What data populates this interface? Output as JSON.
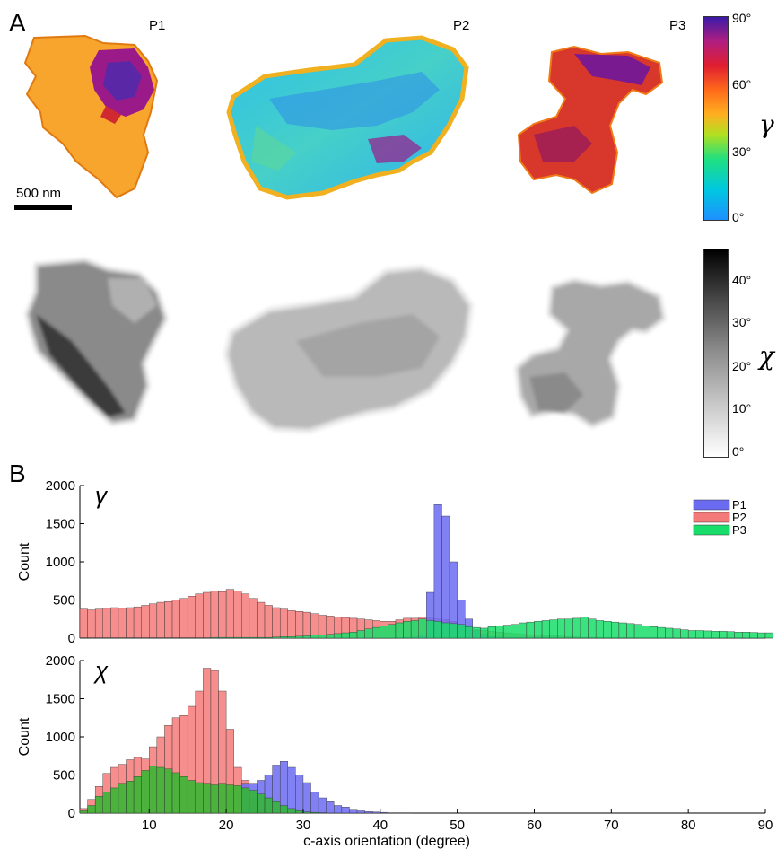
{
  "panel_a": {
    "letter": "A",
    "particle_labels": [
      "P1",
      "P2",
      "P3"
    ],
    "scale_bar": "500 nm",
    "gamma_colorbar": {
      "symbol": "γ",
      "ticks": [
        "90°",
        "60°",
        "30°",
        "0°"
      ]
    },
    "chi_colorbar": {
      "symbol": "χ",
      "ticks": [
        "40°",
        "30°",
        "20°",
        "10°",
        "0°"
      ]
    }
  },
  "panel_b": {
    "letter": "B"
  },
  "chart_data": [
    {
      "type": "bar",
      "title": "γ",
      "ylabel": "Count",
      "xlim": [
        1,
        90
      ],
      "ylim": [
        0,
        2000
      ],
      "yticks": [
        0,
        500,
        1000,
        1500,
        2000
      ],
      "xticks": [],
      "legend": {
        "position": "top-right",
        "entries": [
          "P1",
          "P2",
          "P3"
        ]
      },
      "colors": {
        "P1": "#6b6bf2",
        "P2": "#f47a7a",
        "P3": "#19dd6a"
      },
      "bin_width": 1,
      "x_start": 1,
      "series": [
        {
          "name": "P1",
          "values": [
            0,
            0,
            0,
            0,
            0,
            0,
            0,
            0,
            0,
            0,
            0,
            0,
            0,
            0,
            0,
            0,
            0,
            0,
            0,
            0,
            0,
            0,
            0,
            0,
            0,
            0,
            0,
            0,
            0,
            0,
            0,
            0,
            0,
            0,
            0,
            0,
            0,
            0,
            0,
            0,
            0,
            5,
            10,
            15,
            40,
            600,
            1750,
            1600,
            1000,
            500,
            250,
            100,
            50,
            20,
            15,
            10,
            10,
            10,
            10,
            10,
            10,
            10,
            10,
            10,
            10,
            10,
            10,
            10,
            10,
            10,
            10,
            10,
            10,
            10,
            10,
            5,
            5,
            0,
            0,
            0,
            0,
            0,
            0,
            0,
            0,
            0,
            0,
            0,
            0,
            0
          ]
        },
        {
          "name": "P2",
          "values": [
            380,
            370,
            380,
            390,
            400,
            390,
            400,
            410,
            430,
            450,
            470,
            480,
            500,
            520,
            550,
            580,
            600,
            620,
            610,
            640,
            620,
            580,
            520,
            470,
            430,
            400,
            380,
            360,
            350,
            340,
            320,
            300,
            290,
            280,
            270,
            260,
            250,
            240,
            230,
            220,
            220,
            240,
            260,
            260,
            280,
            260,
            250,
            240,
            220,
            150,
            120,
            110,
            100,
            90,
            80,
            70,
            60,
            50,
            45,
            40,
            35,
            30,
            25,
            20,
            15,
            10,
            10,
            10,
            5,
            5,
            5,
            5,
            5,
            5,
            5,
            5,
            5,
            5,
            5,
            5,
            5,
            5,
            5,
            5,
            5,
            5,
            5,
            5,
            5,
            5
          ]
        },
        {
          "name": "P3",
          "values": [
            5,
            5,
            5,
            5,
            5,
            5,
            5,
            5,
            5,
            5,
            5,
            5,
            5,
            5,
            5,
            5,
            5,
            10,
            10,
            10,
            10,
            10,
            10,
            10,
            10,
            15,
            20,
            20,
            25,
            30,
            40,
            45,
            50,
            60,
            70,
            80,
            100,
            120,
            140,
            160,
            180,
            200,
            220,
            230,
            250,
            230,
            220,
            200,
            190,
            180,
            150,
            140,
            130,
            150,
            160,
            170,
            180,
            200,
            210,
            220,
            230,
            240,
            250,
            250,
            260,
            280,
            250,
            230,
            220,
            210,
            200,
            190,
            180,
            160,
            150,
            140,
            130,
            120,
            110,
            100,
            100,
            95,
            90,
            90,
            85,
            80,
            80,
            75,
            70,
            70
          ]
        }
      ]
    },
    {
      "type": "bar",
      "title": "χ",
      "ylabel": "Count",
      "xlabel": "c-axis orientation (degree)",
      "xlim": [
        1,
        90
      ],
      "ylim": [
        0,
        2000
      ],
      "yticks": [
        0,
        500,
        1000,
        1500,
        2000
      ],
      "xticks": [
        10,
        20,
        30,
        40,
        50,
        60,
        70,
        80,
        90
      ],
      "colors": {
        "P1": "#6b6bf2",
        "P2": "#f47a7a",
        "P3": "#2fb82f"
      },
      "bin_width": 1,
      "x_start": 1,
      "series": [
        {
          "name": "P1",
          "values": [
            0,
            0,
            0,
            0,
            0,
            0,
            0,
            0,
            0,
            0,
            0,
            0,
            0,
            0,
            0,
            0,
            0,
            0,
            0,
            0,
            0,
            380,
            380,
            430,
            500,
            630,
            680,
            600,
            500,
            400,
            280,
            200,
            150,
            100,
            80,
            50,
            30,
            20,
            15,
            10,
            5,
            5,
            5,
            0,
            0,
            0,
            0,
            0,
            0,
            0,
            0,
            0,
            0,
            0,
            0,
            0,
            0,
            0,
            0,
            0,
            0,
            0,
            0,
            0,
            0,
            0,
            0,
            0,
            0,
            0,
            0,
            0,
            0,
            0,
            0,
            0,
            0,
            0,
            0,
            0,
            0,
            0,
            0,
            0,
            0,
            0,
            0,
            0,
            0,
            0
          ]
        },
        {
          "name": "P2",
          "values": [
            60,
            180,
            350,
            520,
            600,
            640,
            700,
            730,
            710,
            870,
            1000,
            1150,
            1250,
            1280,
            1400,
            1600,
            1900,
            1870,
            1600,
            1100,
            600,
            430,
            200,
            50,
            20,
            10,
            5,
            0,
            0,
            0,
            0,
            0,
            0,
            0,
            0,
            0,
            0,
            0,
            0,
            0,
            0,
            0,
            0,
            0,
            0,
            0,
            0,
            0,
            0,
            0,
            0,
            0,
            0,
            0,
            0,
            0,
            0,
            0,
            0,
            0,
            0,
            0,
            0,
            0,
            0,
            0,
            0,
            0,
            0,
            0,
            0,
            0,
            0,
            0,
            0,
            0,
            0,
            0,
            0,
            0,
            0,
            0,
            0,
            0,
            0,
            0,
            0,
            0,
            0,
            0
          ]
        },
        {
          "name": "P3",
          "values": [
            30,
            100,
            220,
            280,
            330,
            380,
            420,
            480,
            560,
            620,
            600,
            580,
            530,
            480,
            430,
            400,
            380,
            370,
            380,
            370,
            360,
            330,
            300,
            250,
            200,
            150,
            100,
            60,
            30,
            15,
            10,
            5,
            0,
            0,
            0,
            0,
            0,
            0,
            0,
            0,
            0,
            0,
            0,
            0,
            0,
            0,
            0,
            0,
            0,
            0,
            0,
            0,
            0,
            0,
            0,
            0,
            0,
            0,
            0,
            0,
            0,
            0,
            0,
            0,
            0,
            0,
            0,
            0,
            0,
            0,
            0,
            0,
            0,
            0,
            0,
            0,
            0,
            0,
            0,
            0,
            0,
            0,
            0,
            0,
            0,
            0,
            0,
            0,
            0,
            0
          ]
        }
      ]
    }
  ]
}
